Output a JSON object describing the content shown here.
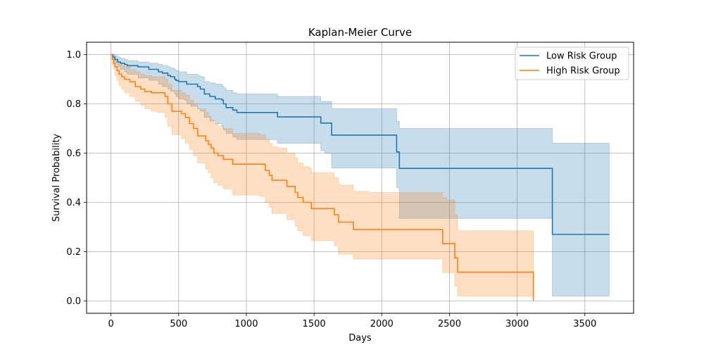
{
  "chart_data": {
    "type": "line",
    "title": "Kaplan-Meier Curve",
    "xlabel": "Days",
    "ylabel": "Survival Probability",
    "xlim": [
      -180,
      3860
    ],
    "ylim": [
      -0.05,
      1.05
    ],
    "xticks": [
      0,
      500,
      1000,
      1500,
      2000,
      2500,
      3000,
      3500
    ],
    "yticks": [
      0.0,
      0.2,
      0.4,
      0.6,
      0.8,
      1.0
    ],
    "xtick_labels": [
      "0",
      "500",
      "1000",
      "1500",
      "2000",
      "2500",
      "3000",
      "3500"
    ],
    "ytick_labels": [
      "0.0",
      "0.2",
      "0.4",
      "0.6",
      "0.8",
      "1.0"
    ],
    "grid": true,
    "legend_position": "top-right",
    "series": [
      {
        "name": "Low Risk Group",
        "color": "#1f77b4",
        "band_color": "#1f77b4",
        "x": [
          0,
          15,
          30,
          50,
          70,
          100,
          120,
          200,
          280,
          350,
          380,
          420,
          440,
          470,
          480,
          500,
          540,
          560,
          590,
          640,
          660,
          690,
          730,
          770,
          820,
          830,
          850,
          900,
          930,
          1000,
          1230,
          1550,
          1580,
          1630,
          2110,
          2130,
          3260,
          3680
        ],
        "y": [
          1.0,
          0.99,
          0.98,
          0.97,
          0.965,
          0.96,
          0.955,
          0.95,
          0.94,
          0.93,
          0.925,
          0.915,
          0.91,
          0.9,
          0.895,
          0.89,
          0.89,
          0.88,
          0.88,
          0.87,
          0.86,
          0.84,
          0.83,
          0.82,
          0.815,
          0.8,
          0.785,
          0.775,
          0.765,
          0.765,
          0.747,
          0.722,
          0.722,
          0.673,
          0.605,
          0.538,
          0.27,
          0.27
        ],
        "lower": [
          1.0,
          0.98,
          0.965,
          0.95,
          0.94,
          0.93,
          0.92,
          0.905,
          0.895,
          0.88,
          0.87,
          0.86,
          0.85,
          0.84,
          0.83,
          0.82,
          0.815,
          0.8,
          0.79,
          0.78,
          0.77,
          0.745,
          0.73,
          0.72,
          0.71,
          0.695,
          0.68,
          0.665,
          0.655,
          0.655,
          0.64,
          0.61,
          0.6,
          0.54,
          0.46,
          0.335,
          0.02,
          0.02
        ],
        "upper": [
          1.0,
          1.0,
          0.995,
          0.99,
          0.985,
          0.98,
          0.975,
          0.97,
          0.965,
          0.96,
          0.955,
          0.95,
          0.945,
          0.94,
          0.935,
          0.93,
          0.93,
          0.92,
          0.92,
          0.915,
          0.91,
          0.89,
          0.885,
          0.88,
          0.875,
          0.865,
          0.855,
          0.845,
          0.84,
          0.84,
          0.83,
          0.81,
          0.81,
          0.78,
          0.73,
          0.7,
          0.64,
          0.64
        ]
      },
      {
        "name": "High Risk Group",
        "color": "#ff7f0e",
        "band_color": "#ff7f0e",
        "x": [
          0,
          10,
          20,
          30,
          45,
          60,
          80,
          100,
          140,
          180,
          220,
          250,
          300,
          350,
          400,
          420,
          450,
          520,
          550,
          580,
          610,
          640,
          700,
          720,
          740,
          760,
          790,
          830,
          900,
          1000,
          1100,
          1140,
          1170,
          1190,
          1230,
          1300,
          1360,
          1380,
          1420,
          1460,
          1480,
          1650,
          1680,
          1690,
          1790,
          1900,
          2450,
          2480,
          2540,
          2560,
          3120
        ],
        "y": [
          1.0,
          0.98,
          0.965,
          0.95,
          0.935,
          0.92,
          0.91,
          0.9,
          0.89,
          0.87,
          0.86,
          0.85,
          0.845,
          0.845,
          0.83,
          0.8,
          0.77,
          0.76,
          0.745,
          0.72,
          0.7,
          0.67,
          0.65,
          0.635,
          0.62,
          0.6,
          0.59,
          0.575,
          0.555,
          0.555,
          0.555,
          0.53,
          0.51,
          0.49,
          0.49,
          0.465,
          0.44,
          0.42,
          0.4,
          0.4,
          0.375,
          0.35,
          0.32,
          0.32,
          0.29,
          0.29,
          0.233,
          0.233,
          0.175,
          0.117,
          0.0
        ],
        "lower": [
          1.0,
          0.96,
          0.94,
          0.915,
          0.895,
          0.875,
          0.86,
          0.845,
          0.83,
          0.81,
          0.795,
          0.78,
          0.77,
          0.765,
          0.745,
          0.71,
          0.675,
          0.66,
          0.64,
          0.615,
          0.59,
          0.56,
          0.535,
          0.52,
          0.5,
          0.48,
          0.47,
          0.455,
          0.43,
          0.43,
          0.425,
          0.4,
          0.38,
          0.355,
          0.355,
          0.33,
          0.305,
          0.285,
          0.265,
          0.265,
          0.245,
          0.225,
          0.19,
          0.19,
          0.17,
          0.17,
          0.115,
          0.115,
          0.06,
          0.02,
          0.0
        ],
        "upper": [
          1.0,
          0.995,
          0.99,
          0.98,
          0.97,
          0.96,
          0.955,
          0.95,
          0.94,
          0.93,
          0.92,
          0.915,
          0.91,
          0.91,
          0.9,
          0.88,
          0.855,
          0.845,
          0.835,
          0.815,
          0.8,
          0.78,
          0.765,
          0.75,
          0.735,
          0.72,
          0.71,
          0.7,
          0.68,
          0.68,
          0.675,
          0.655,
          0.64,
          0.625,
          0.62,
          0.6,
          0.58,
          0.56,
          0.545,
          0.54,
          0.52,
          0.5,
          0.475,
          0.47,
          0.445,
          0.44,
          0.42,
          0.41,
          0.35,
          0.285,
          0.285
        ]
      }
    ]
  }
}
